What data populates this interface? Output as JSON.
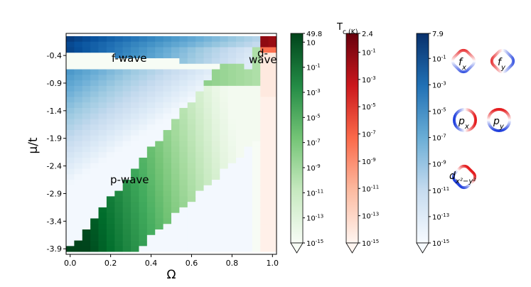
{
  "chart_data": {
    "type": "heatmap",
    "xlabel": "Ω",
    "ylabel": "μ/t",
    "x_ticks": [
      "0.0",
      "0.2",
      "0.4",
      "0.6",
      "0.8",
      "1.0"
    ],
    "y_ticks": [
      "-0.4",
      "-0.9",
      "-1.4",
      "-1.9",
      "-2.4",
      "-2.9",
      "-3.4",
      "-3.9"
    ],
    "xlim": [
      -0.02,
      1.02
    ],
    "ylim": [
      -4.0,
      0.0
    ],
    "grid": {
      "omega_start": 0.0,
      "omega_step": 0.04,
      "omega_count": 26,
      "mu_start": -0.1,
      "mu_step": 0.1,
      "mu_count": 39
    },
    "region_labels": {
      "f_wave": "f-wave",
      "p_wave": "p-wave",
      "d_wave_top": "d-",
      "d_wave_bottom": "wave"
    },
    "colorbar_title": "T_c (K)",
    "colorbars": [
      {
        "name": "p-wave",
        "colormap": "Greens",
        "max_label": "49.8",
        "tick_labels": [
          "10",
          "10^-1",
          "10^-3",
          "10^-5",
          "10^-7",
          "10^-9",
          "10^-11",
          "10^-13",
          "10^-15"
        ],
        "log_ticks": [
          1,
          -1,
          -3,
          -5,
          -7,
          -9,
          -11,
          -13,
          -15
        ],
        "log_range": [
          -15,
          1.697
        ]
      },
      {
        "name": "d-wave",
        "colormap": "Reds",
        "max_label": "2.4",
        "tick_labels": [
          "10^-1",
          "10^-3",
          "10^-5",
          "10^-7",
          "10^-9",
          "10^-11",
          "10^-13",
          "10^-15"
        ],
        "log_ticks": [
          -1,
          -3,
          -5,
          -7,
          -9,
          -11,
          -13,
          -15
        ],
        "log_range": [
          -15,
          0.38
        ]
      },
      {
        "name": "f-wave",
        "colormap": "Blues",
        "max_label": "7.9",
        "tick_labels": [
          "10^-1",
          "10^-3",
          "10^-5",
          "10^-7",
          "10^-9",
          "10^-11",
          "10^-13",
          "10^-15"
        ],
        "log_ticks": [
          -1,
          -3,
          -5,
          -7,
          -9,
          -11,
          -13,
          -15
        ],
        "log_range": [
          -15,
          0.9
        ]
      }
    ],
    "legend": {
      "f_x": "f_x",
      "f_y": "f_y",
      "p_x": "p_x",
      "p_y": "p_y",
      "d": "d_x²−y²"
    }
  }
}
